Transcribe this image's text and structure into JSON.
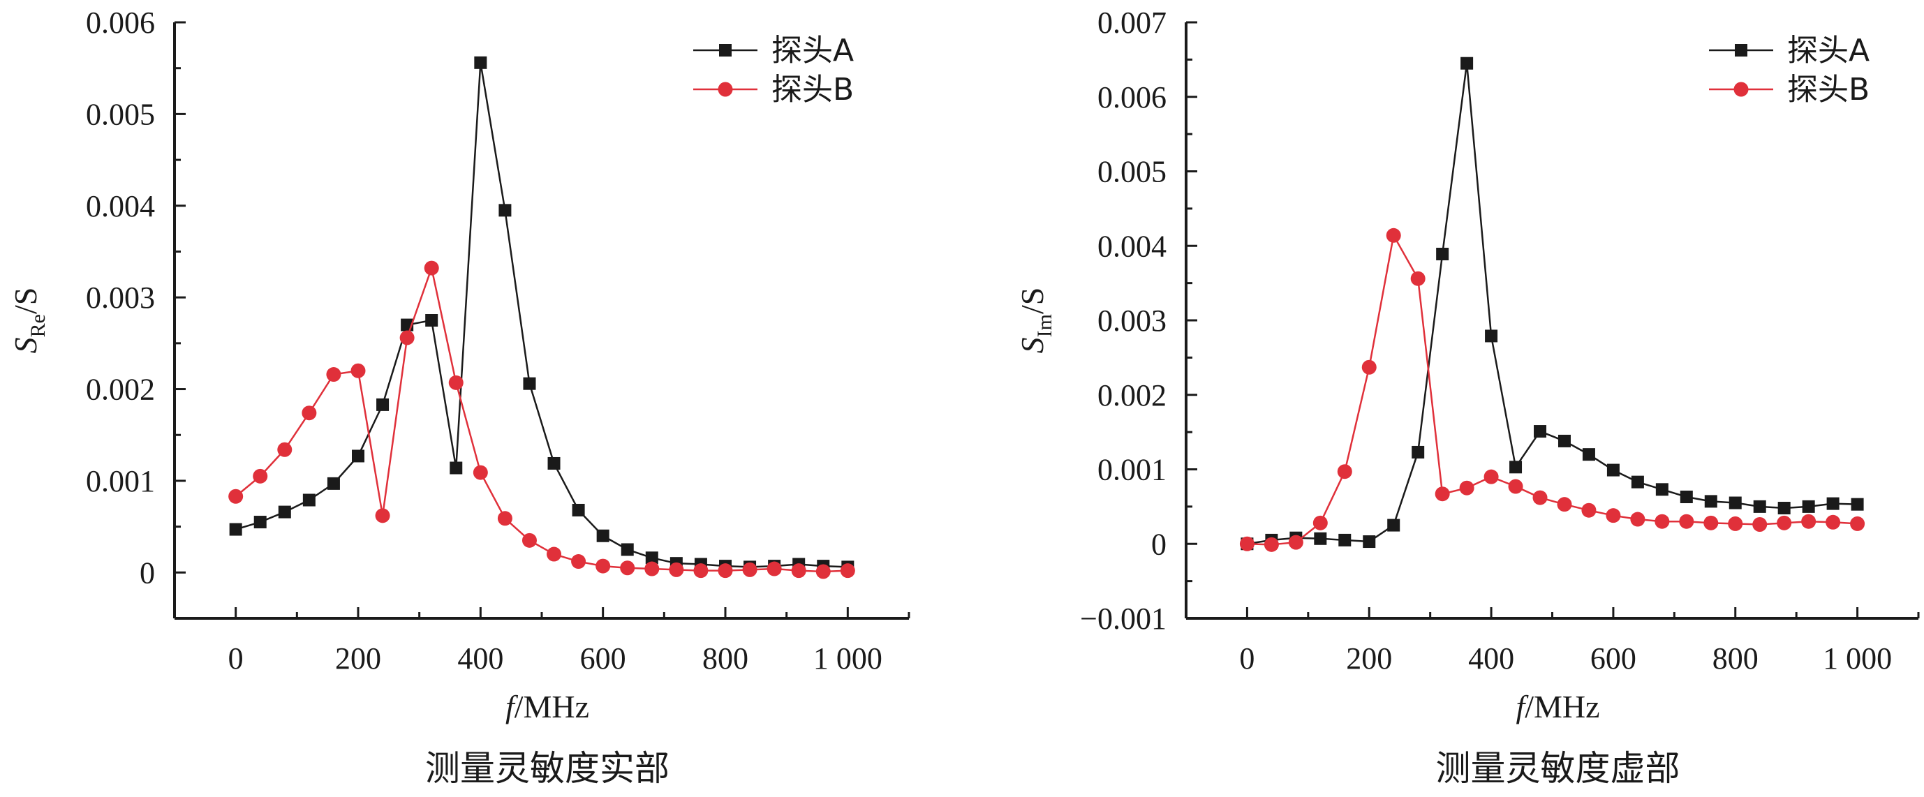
{
  "chart_data": [
    {
      "type": "line",
      "caption": "测量灵敏度实部",
      "ylabel_main": "S",
      "ylabel_sub": "Re",
      "ylabel_tail": "/S",
      "xlabel_italic": "f",
      "xlabel_tail": "/MHz",
      "xlim": [
        -100,
        1100
      ],
      "ylim": [
        -0.0005,
        0.006
      ],
      "xticks": [
        0,
        200,
        400,
        600,
        800,
        1000
      ],
      "xtick_labels": [
        "0",
        "200",
        "400",
        "600",
        "800",
        "1 000"
      ],
      "yticks": [
        0,
        0.001,
        0.002,
        0.003,
        0.004,
        0.005,
        0.006
      ],
      "ytick_labels": [
        "0",
        "0.001",
        "0.002",
        "0.003",
        "0.004",
        "0.005",
        "0.006"
      ],
      "legend_position": "top-right",
      "series": [
        {
          "name": "探头A",
          "color": "#1a1a1a",
          "marker": "square",
          "x": [
            0,
            40,
            80,
            120,
            160,
            200,
            240,
            280,
            320,
            360,
            400,
            440,
            480,
            520,
            560,
            600,
            640,
            680,
            720,
            760,
            800,
            840,
            880,
            920,
            960,
            1000
          ],
          "y": [
            0.00047,
            0.00055,
            0.00066,
            0.00079,
            0.00097,
            0.00127,
            0.00183,
            0.0027,
            0.00275,
            0.00114,
            0.00556,
            0.00395,
            0.00206,
            0.00119,
            0.00068,
            0.0004,
            0.00025,
            0.00016,
            0.0001,
            9e-05,
            7e-05,
            6e-05,
            7e-05,
            9e-05,
            7e-05,
            6e-05
          ]
        },
        {
          "name": "探头B",
          "color": "#e0303a",
          "marker": "circle",
          "x": [
            0,
            40,
            80,
            120,
            160,
            200,
            240,
            280,
            320,
            360,
            400,
            440,
            480,
            520,
            560,
            600,
            640,
            680,
            720,
            760,
            800,
            840,
            880,
            920,
            960,
            1000
          ],
          "y": [
            0.00083,
            0.00105,
            0.00134,
            0.00174,
            0.00216,
            0.0022,
            0.00062,
            0.00256,
            0.00332,
            0.00207,
            0.00109,
            0.00059,
            0.00035,
            0.0002,
            0.00012,
            7e-05,
            5e-05,
            4e-05,
            3e-05,
            2e-05,
            2e-05,
            3e-05,
            4e-05,
            2e-05,
            1e-05,
            2e-05
          ]
        }
      ]
    },
    {
      "type": "line",
      "caption": "测量灵敏度虚部",
      "ylabel_main": "S",
      "ylabel_sub": "Im",
      "ylabel_tail": "/S",
      "xlabel_italic": "f",
      "xlabel_tail": "/MHz",
      "xlim": [
        -100,
        1100
      ],
      "ylim": [
        -0.001,
        0.007
      ],
      "xticks": [
        0,
        200,
        400,
        600,
        800,
        1000
      ],
      "xtick_labels": [
        "0",
        "200",
        "400",
        "600",
        "800",
        "1 000"
      ],
      "yticks": [
        -0.001,
        0,
        0.001,
        0.002,
        0.003,
        0.004,
        0.005,
        0.006,
        0.007
      ],
      "ytick_labels": [
        "−0.001",
        "0",
        "0.001",
        "0.002",
        "0.003",
        "0.004",
        "0.005",
        "0.006",
        "0.007"
      ],
      "legend_position": "top-right",
      "series": [
        {
          "name": "探头A",
          "color": "#1a1a1a",
          "marker": "square",
          "x": [
            0,
            40,
            80,
            120,
            160,
            200,
            240,
            280,
            320,
            360,
            400,
            440,
            480,
            520,
            560,
            600,
            640,
            680,
            720,
            760,
            800,
            840,
            880,
            920,
            960,
            1000
          ],
          "y": [
            0.0,
            5e-05,
            8e-05,
            7e-05,
            5e-05,
            3e-05,
            0.00025,
            0.00123,
            0.00389,
            0.00645,
            0.00279,
            0.00103,
            0.00151,
            0.00138,
            0.0012,
            0.00099,
            0.00083,
            0.00073,
            0.00063,
            0.00057,
            0.00055,
            0.0005,
            0.00048,
            0.0005,
            0.00054,
            0.00053
          ]
        },
        {
          "name": "探头B",
          "color": "#e0303a",
          "marker": "circle",
          "x": [
            0,
            40,
            80,
            120,
            160,
            200,
            240,
            280,
            320,
            360,
            400,
            440,
            480,
            520,
            560,
            600,
            640,
            680,
            720,
            760,
            800,
            840,
            880,
            920,
            960,
            1000
          ],
          "y": [
            0.0,
            -1e-05,
            2e-05,
            0.00028,
            0.00097,
            0.00237,
            0.00414,
            0.00356,
            0.00067,
            0.00075,
            0.0009,
            0.00077,
            0.00062,
            0.00053,
            0.00045,
            0.00038,
            0.00033,
            0.0003,
            0.0003,
            0.00028,
            0.00027,
            0.00026,
            0.00028,
            0.0003,
            0.00029,
            0.00027
          ]
        }
      ]
    }
  ]
}
